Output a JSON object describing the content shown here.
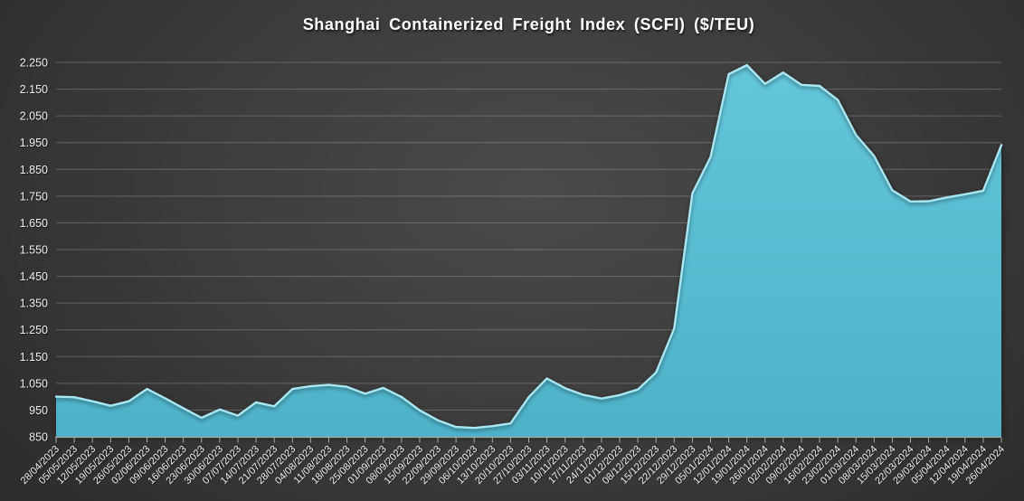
{
  "title": "Shanghai Containerized Freight Index (SCFI) ($/TEU)",
  "chart_data": {
    "type": "area",
    "title": "Shanghai Containerized Freight Index (SCFI) ($/TEU)",
    "series_name": "SCFI ($/TEU)",
    "x": [
      "28/04/2023",
      "05/05/2023",
      "12/05/2023",
      "19/05/2023",
      "26/05/2023",
      "02/06/2023",
      "09/06/2023",
      "16/06/2023",
      "23/06/2023",
      "30/06/2023",
      "07/07/2023",
      "14/07/2023",
      "21/07/2023",
      "28/07/2023",
      "04/08/2023",
      "11/08/2023",
      "18/08/2023",
      "25/08/2023",
      "01/09/2023",
      "08/09/2023",
      "15/09/2023",
      "22/09/2023",
      "29/09/2023",
      "06/10/2023",
      "13/10/2023",
      "20/10/2023",
      "27/10/2023",
      "03/11/2023",
      "10/11/2023",
      "17/11/2023",
      "24/11/2023",
      "01/12/2023",
      "08/12/2023",
      "15/12/2023",
      "22/12/2023",
      "29/12/2023",
      "05/01/2024",
      "12/01/2024",
      "19/01/2024",
      "26/01/2024",
      "02/02/2024",
      "09/02/2024",
      "16/02/2024",
      "23/02/2024",
      "01/03/2024",
      "08/03/2024",
      "15/03/2024",
      "22/03/2024",
      "29/03/2024",
      "05/04/2024",
      "12/04/2024",
      "19/04/2024",
      "26/04/2024"
    ],
    "values": [
      1000,
      998,
      983,
      966,
      983,
      1029,
      994,
      957,
      921,
      952,
      929,
      979,
      964,
      1029,
      1039,
      1044,
      1037,
      1011,
      1033,
      999,
      949,
      912,
      887,
      883,
      890,
      900,
      998,
      1068,
      1032,
      1007,
      993,
      1006,
      1027,
      1090,
      1255,
      1760,
      1896,
      2206,
      2240,
      2170,
      2212,
      2166,
      2162,
      2110,
      1979,
      1900,
      1772,
      1730,
      1731,
      1745,
      1757,
      1770,
      1941
    ],
    "xlabel": "",
    "ylabel": "",
    "ylim": [
      850,
      2250
    ],
    "ytick_step": 100,
    "ytick_labels": [
      "850",
      "950",
      "1.050",
      "1.150",
      "1.250",
      "1.350",
      "1.450",
      "1.550",
      "1.650",
      "1.750",
      "1.850",
      "1.950",
      "2.050",
      "2.150",
      "2.250"
    ],
    "grid": "horizontal",
    "legend": "none",
    "colors": {
      "area_fill_top": "#63C6DA",
      "area_fill_bottom": "#4DB2C9",
      "line_highlight": "#A9E7F2",
      "background_center": "#4A4A4A",
      "background_edge": "#262626",
      "gridline": "rgba(255,255,255,0.22)",
      "axis_line": "#A9A9A9",
      "label_text": "#EFEFEF",
      "title_text": "#FFFFFF"
    }
  }
}
